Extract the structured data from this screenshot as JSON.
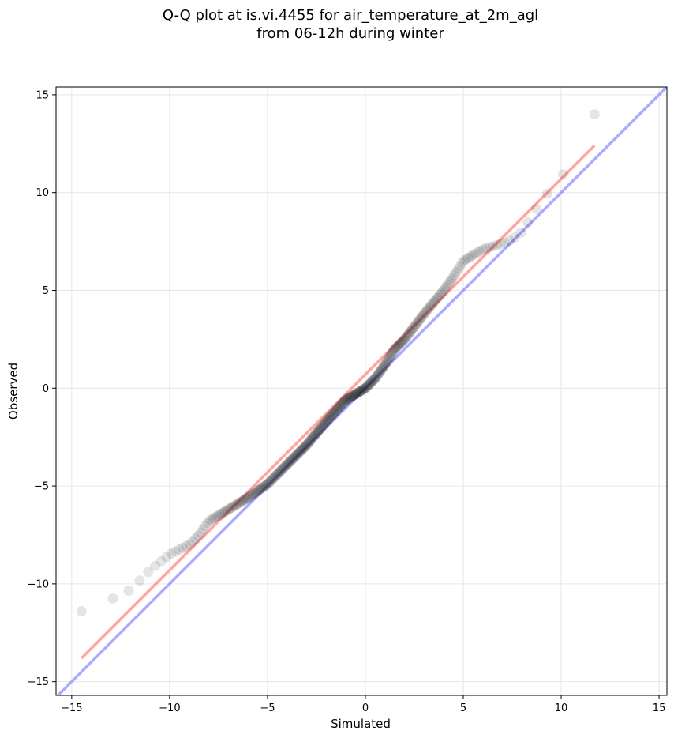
{
  "chart_data": {
    "type": "scatter",
    "title": [
      "Q-Q plot at is.vi.4455 for air_temperature_at_2m_agl",
      "from 06-12h during winter"
    ],
    "xlabel": "Simulated",
    "ylabel": "Observed",
    "xlim": [
      -15.8,
      15.4
    ],
    "ylim": [
      -15.7,
      15.4
    ],
    "x_ticks": [
      -15,
      -10,
      -5,
      0,
      5,
      10,
      15
    ],
    "y_ticks": [
      -15,
      -10,
      -5,
      0,
      5,
      10,
      15
    ],
    "x_tick_labels": [
      "−15",
      "−10",
      "−5",
      "0",
      "5",
      "10",
      "15"
    ],
    "y_tick_labels": [
      "−15",
      "−10",
      "−5",
      "0",
      "5",
      "10",
      "15"
    ],
    "grid": true,
    "colors": {
      "points": "#000000",
      "fit_line": "#ff7f7f",
      "identity_line": "#7f7fff"
    },
    "fit_line": {
      "x": [
        -14.5,
        11.7
      ],
      "y": [
        -13.8,
        12.4
      ]
    },
    "identity_line": {
      "x": [
        -15.8,
        15.4
      ],
      "y": [
        -15.8,
        15.4
      ]
    },
    "quantile_curve": {
      "x": [
        -14.5,
        -13.5,
        -13.0,
        -12.0,
        -11.0,
        -10.0,
        -9.0,
        -8.5,
        -8.0,
        -7.0,
        -6.0,
        -5.0,
        -4.0,
        -3.0,
        -2.0,
        -1.0,
        0.0,
        0.5,
        1.0,
        1.5,
        2.0,
        3.0,
        4.0,
        4.5,
        5.0,
        6.0,
        7.0,
        7.5,
        8.0,
        8.5,
        9.0,
        10.0,
        11.0,
        11.5,
        11.7
      ],
      "y": [
        -11.4,
        -11.0,
        -10.8,
        -10.3,
        -9.3,
        -8.5,
        -8.0,
        -7.5,
        -6.8,
        -6.2,
        -5.6,
        -4.9,
        -3.9,
        -2.9,
        -1.7,
        -0.6,
        0.0,
        0.5,
        1.2,
        2.0,
        2.5,
        3.8,
        5.0,
        5.7,
        6.5,
        7.1,
        7.4,
        7.6,
        8.0,
        8.8,
        9.6,
        10.8,
        12.1,
        13.7,
        14.0
      ]
    },
    "n_points": 300
  }
}
